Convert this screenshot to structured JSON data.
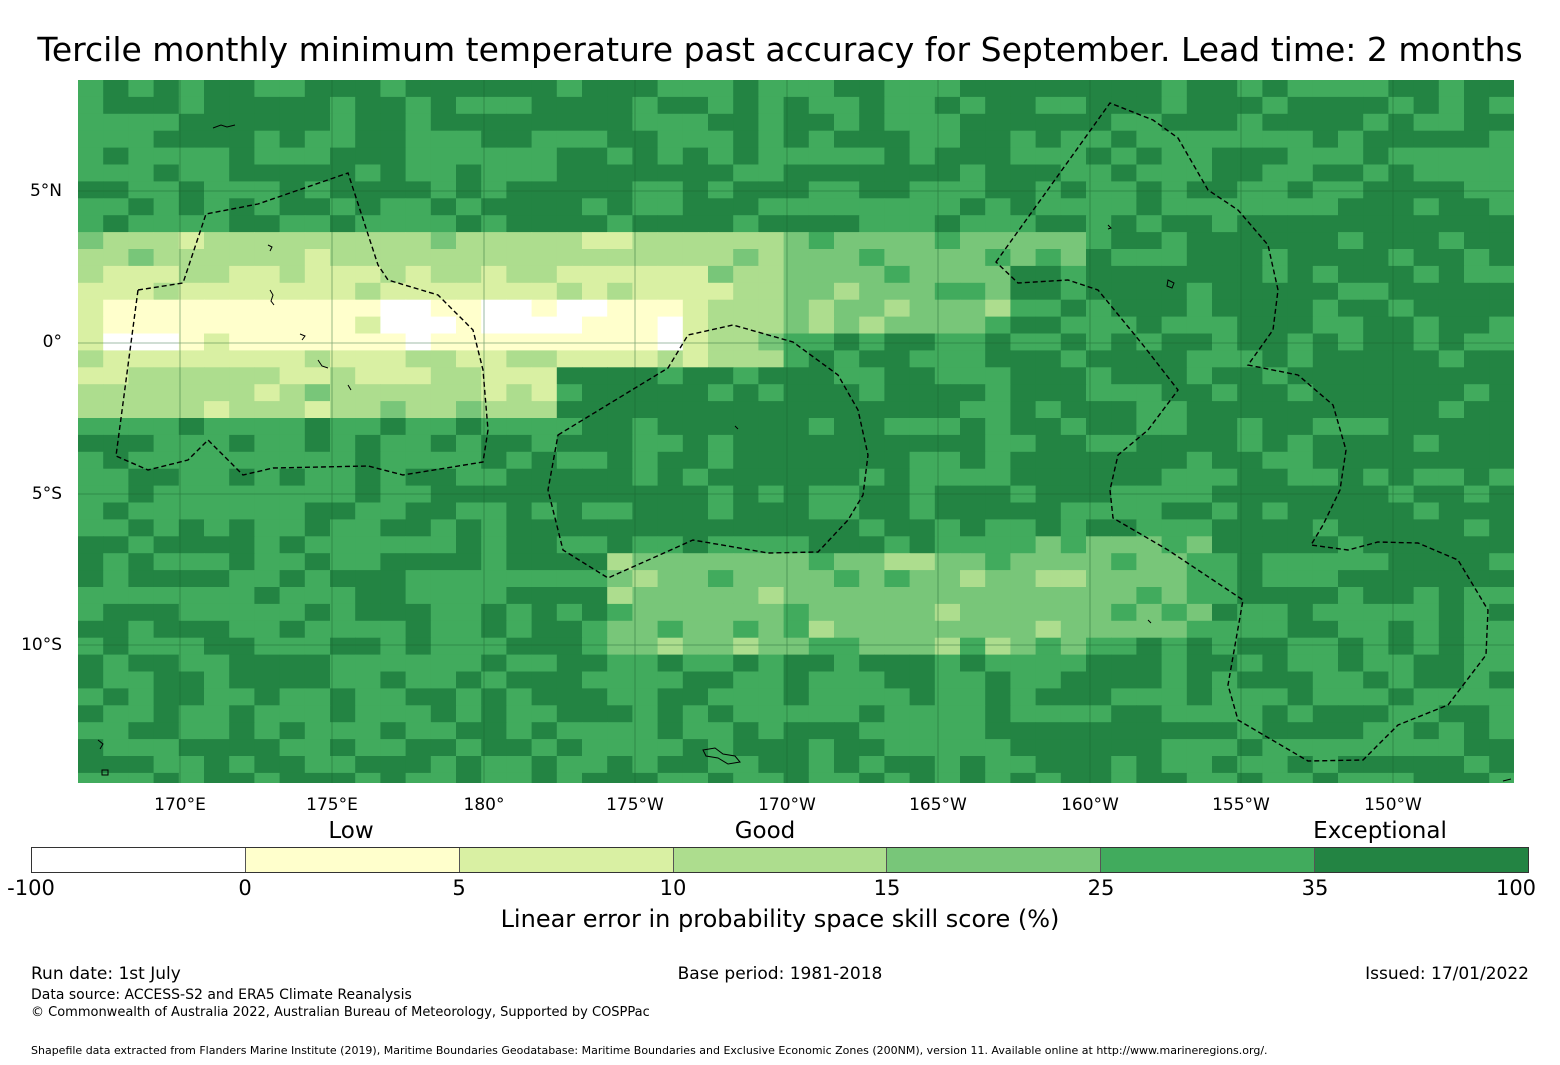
{
  "title": "Tercile monthly minimum temperature past accuracy for September. Lead time: 2 months",
  "map": {
    "lon_labels": [
      "170°E",
      "175°E",
      "180°",
      "175°W",
      "170°W",
      "165°W",
      "160°W",
      "155°W",
      "150°W"
    ],
    "lat_labels": [
      "5°N",
      "0°",
      "5°S",
      "10°S"
    ]
  },
  "categories": [
    "Low",
    "Good",
    "Exceptional"
  ],
  "colorbar": {
    "ticks": [
      "-100",
      "0",
      "5",
      "10",
      "15",
      "25",
      "35",
      "100"
    ],
    "colors": [
      "#ffffff",
      "#ffffcc",
      "#d9f0a3",
      "#addd8e",
      "#78c679",
      "#41ab5d",
      "#238443"
    ],
    "label": "Linear error in probability space skill score (%)"
  },
  "footer": {
    "run_date": "Run date: 1st July",
    "base_period": "Base period: 1981-2018",
    "issued": "Issued: 17/01/2022",
    "data_source": "Data source: ACCESS-S2 and ERA5 Climate Reanalysis",
    "copyright": "© Commonwealth of Australia 2022, Australian Bureau of Meteorology, Supported by COSPPac",
    "shapefile": "Shapefile data extracted from Flanders Marine Institute (2019), Maritime Boundaries Geodatabase: Maritime Boundaries and Exclusive Economic Zones (200NM), version 11. Available online at http://www.marineregions.org/."
  }
}
